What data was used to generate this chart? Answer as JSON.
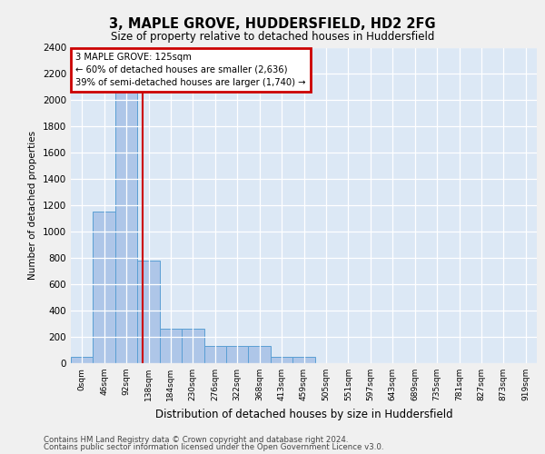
{
  "title1": "3, MAPLE GROVE, HUDDERSFIELD, HD2 2FG",
  "title2": "Size of property relative to detached houses in Huddersfield",
  "xlabel": "Distribution of detached houses by size in Huddersfield",
  "ylabel": "Number of detached properties",
  "bin_labels": [
    "0sqm",
    "46sqm",
    "92sqm",
    "138sqm",
    "184sqm",
    "230sqm",
    "276sqm",
    "322sqm",
    "368sqm",
    "413sqm",
    "459sqm",
    "505sqm",
    "551sqm",
    "597sqm",
    "643sqm",
    "689sqm",
    "735sqm",
    "781sqm",
    "827sqm",
    "873sqm",
    "919sqm"
  ],
  "bar_values": [
    50,
    1150,
    2200,
    780,
    260,
    260,
    130,
    130,
    130,
    50,
    50,
    0,
    0,
    0,
    0,
    0,
    0,
    0,
    0,
    0,
    0
  ],
  "bar_color": "#aec6e8",
  "bar_edge_color": "#5a9fd4",
  "property_line_x": 2.717,
  "annotation_title": "3 MAPLE GROVE: 125sqm",
  "annotation_line1": "← 60% of detached houses are smaller (2,636)",
  "annotation_line2": "39% of semi-detached houses are larger (1,740) →",
  "annotation_box_color": "#ffffff",
  "annotation_box_edge": "#cc0000",
  "vertical_line_color": "#cc0000",
  "ylim": [
    0,
    2400
  ],
  "yticks": [
    0,
    200,
    400,
    600,
    800,
    1000,
    1200,
    1400,
    1600,
    1800,
    2000,
    2200,
    2400
  ],
  "footer1": "Contains HM Land Registry data © Crown copyright and database right 2024.",
  "footer2": "Contains public sector information licensed under the Open Government Licence v3.0.",
  "fig_bg_color": "#f0f0f0",
  "plot_bg_color": "#dce8f5"
}
